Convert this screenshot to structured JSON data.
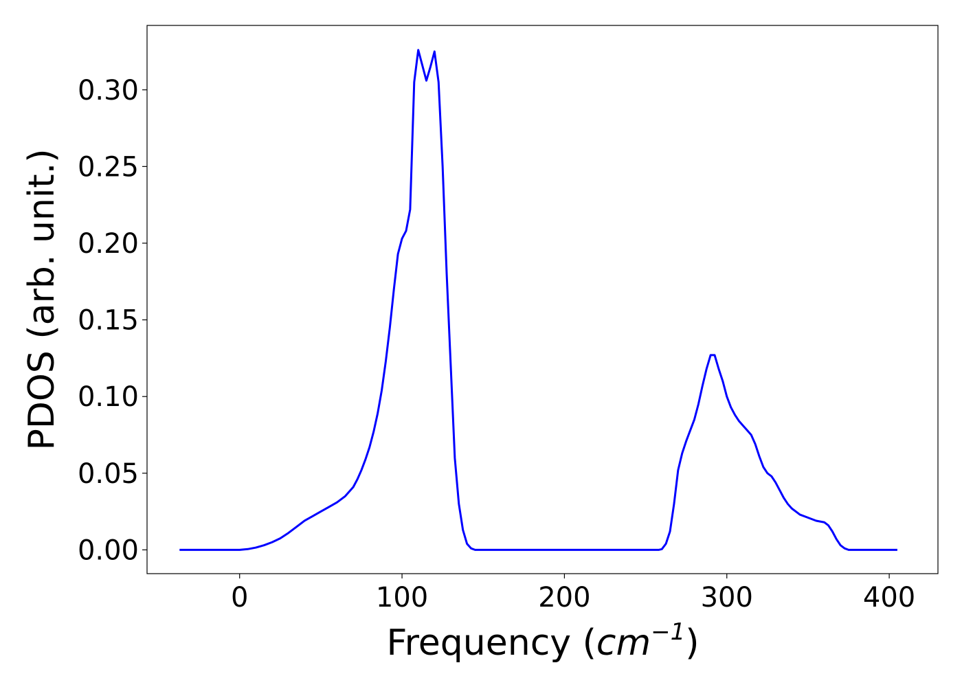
{
  "chart_data": {
    "type": "line",
    "title": "",
    "xlabel_prefix": "Frequency (",
    "xlabel_unit": "cm",
    "xlabel_exponent": "−1",
    "xlabel_suffix": ")",
    "ylabel": "PDOS (arb. unit.)",
    "xlim": [
      -57,
      430
    ],
    "ylim": [
      -0.0155,
      0.342
    ],
    "xticks": [
      0,
      100,
      200,
      300,
      400
    ],
    "xtick_labels": [
      "0",
      "100",
      "200",
      "300",
      "400"
    ],
    "yticks": [
      0.0,
      0.05,
      0.1,
      0.15,
      0.2,
      0.25,
      0.3
    ],
    "ytick_labels": [
      "0.00",
      "0.05",
      "0.10",
      "0.15",
      "0.20",
      "0.25",
      "0.30"
    ],
    "grid": false,
    "legend": "none",
    "colors": {
      "line": "#0000ff",
      "axes": "#000000",
      "background": "#ffffff"
    },
    "series": [
      {
        "x": [
          -37,
          0,
          5,
          10,
          15,
          20,
          25,
          30,
          35,
          40,
          45,
          50,
          55,
          60,
          65,
          70,
          72.5,
          75,
          77.5,
          80,
          82.5,
          85,
          87.5,
          90,
          92.5,
          95,
          97.5,
          100,
          102.5,
          105,
          107.5,
          110,
          112.5,
          115,
          117.5,
          120,
          122.5,
          125,
          127.5,
          130,
          132.5,
          135,
          137.5,
          140,
          142.5,
          145,
          150,
          160,
          200,
          250,
          258,
          260,
          262.5,
          265,
          267.5,
          270,
          272.5,
          275,
          277.5,
          280,
          282.5,
          285,
          287.5,
          290,
          292.5,
          295,
          297.5,
          300,
          302.5,
          305,
          307.5,
          310,
          312.5,
          315,
          317.5,
          320,
          322.5,
          325,
          327.5,
          330,
          332.5,
          335,
          337.5,
          340,
          342.5,
          345,
          350,
          355,
          360,
          362.5,
          365,
          367.5,
          370,
          372.5,
          375,
          377.5,
          380,
          390,
          405
        ],
        "y": [
          0.0,
          0.0,
          0.0005,
          0.0015,
          0.003,
          0.005,
          0.0075,
          0.011,
          0.015,
          0.019,
          0.022,
          0.025,
          0.028,
          0.031,
          0.035,
          0.041,
          0.046,
          0.052,
          0.059,
          0.067,
          0.077,
          0.089,
          0.104,
          0.123,
          0.145,
          0.17,
          0.193,
          0.203,
          0.208,
          0.222,
          0.305,
          0.326,
          0.316,
          0.306,
          0.315,
          0.325,
          0.305,
          0.25,
          0.18,
          0.12,
          0.06,
          0.03,
          0.013,
          0.004,
          0.001,
          0.0,
          0.0,
          0.0,
          0.0,
          0.0,
          0.0,
          0.0005,
          0.004,
          0.012,
          0.03,
          0.052,
          0.063,
          0.071,
          0.078,
          0.085,
          0.095,
          0.107,
          0.118,
          0.127,
          0.127,
          0.118,
          0.11,
          0.1,
          0.093,
          0.088,
          0.084,
          0.081,
          0.078,
          0.075,
          0.069,
          0.061,
          0.054,
          0.05,
          0.048,
          0.044,
          0.039,
          0.034,
          0.03,
          0.027,
          0.025,
          0.023,
          0.021,
          0.019,
          0.018,
          0.016,
          0.012,
          0.007,
          0.003,
          0.001,
          0.0,
          0.0,
          0.0,
          0.0,
          0.0
        ]
      }
    ]
  }
}
